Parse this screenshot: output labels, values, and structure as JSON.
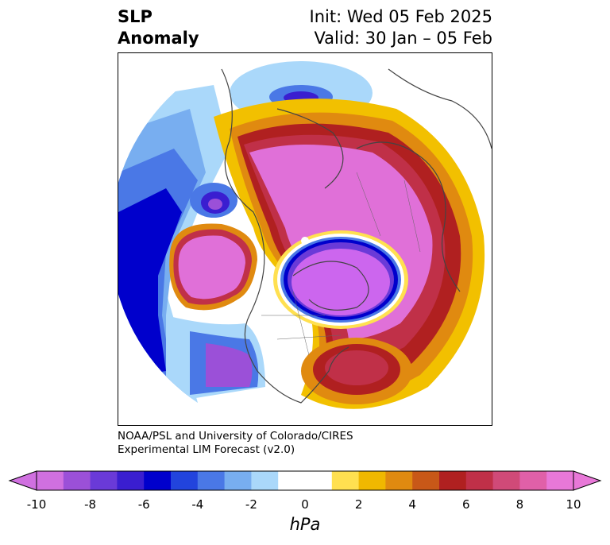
{
  "title": {
    "left_line1": "SLP",
    "left_line2": "Anomaly",
    "right_line1": "Init: Wed 05 Feb 2025",
    "right_line2": "Valid: 30 Jan – 05 Feb"
  },
  "credit": {
    "line1": "NOAA/PSL and University of Colorado/CIRES",
    "line2": "Experimental LIM Forecast (v2.0)"
  },
  "colorbar": {
    "unit": "hPa",
    "ticks": [
      "-10",
      "-8",
      "-6",
      "-4",
      "-2",
      "0",
      "2",
      "4",
      "6",
      "8",
      "10"
    ],
    "colors": [
      "#d070e0",
      "#9b50d8",
      "#6a3ad8",
      "#3a1ed0",
      "#0000cc",
      "#2244dd",
      "#4a78e6",
      "#78aef0",
      "#aad8fa",
      "#ffffff",
      "#ffffff",
      "#ffe050",
      "#f0b800",
      "#e08a10",
      "#c85818",
      "#b02020",
      "#c03048",
      "#d04a78",
      "#e060a8",
      "#e878d8"
    ]
  },
  "colors": {
    "strong_positive": "#e070d8",
    "positive_mid": "#c03050",
    "positive_low": "#f2c000",
    "strong_negative": "#cc66ee",
    "negative_mid": "#2a30d8",
    "negative_low": "#aad8fa",
    "coast": "#444444"
  }
}
